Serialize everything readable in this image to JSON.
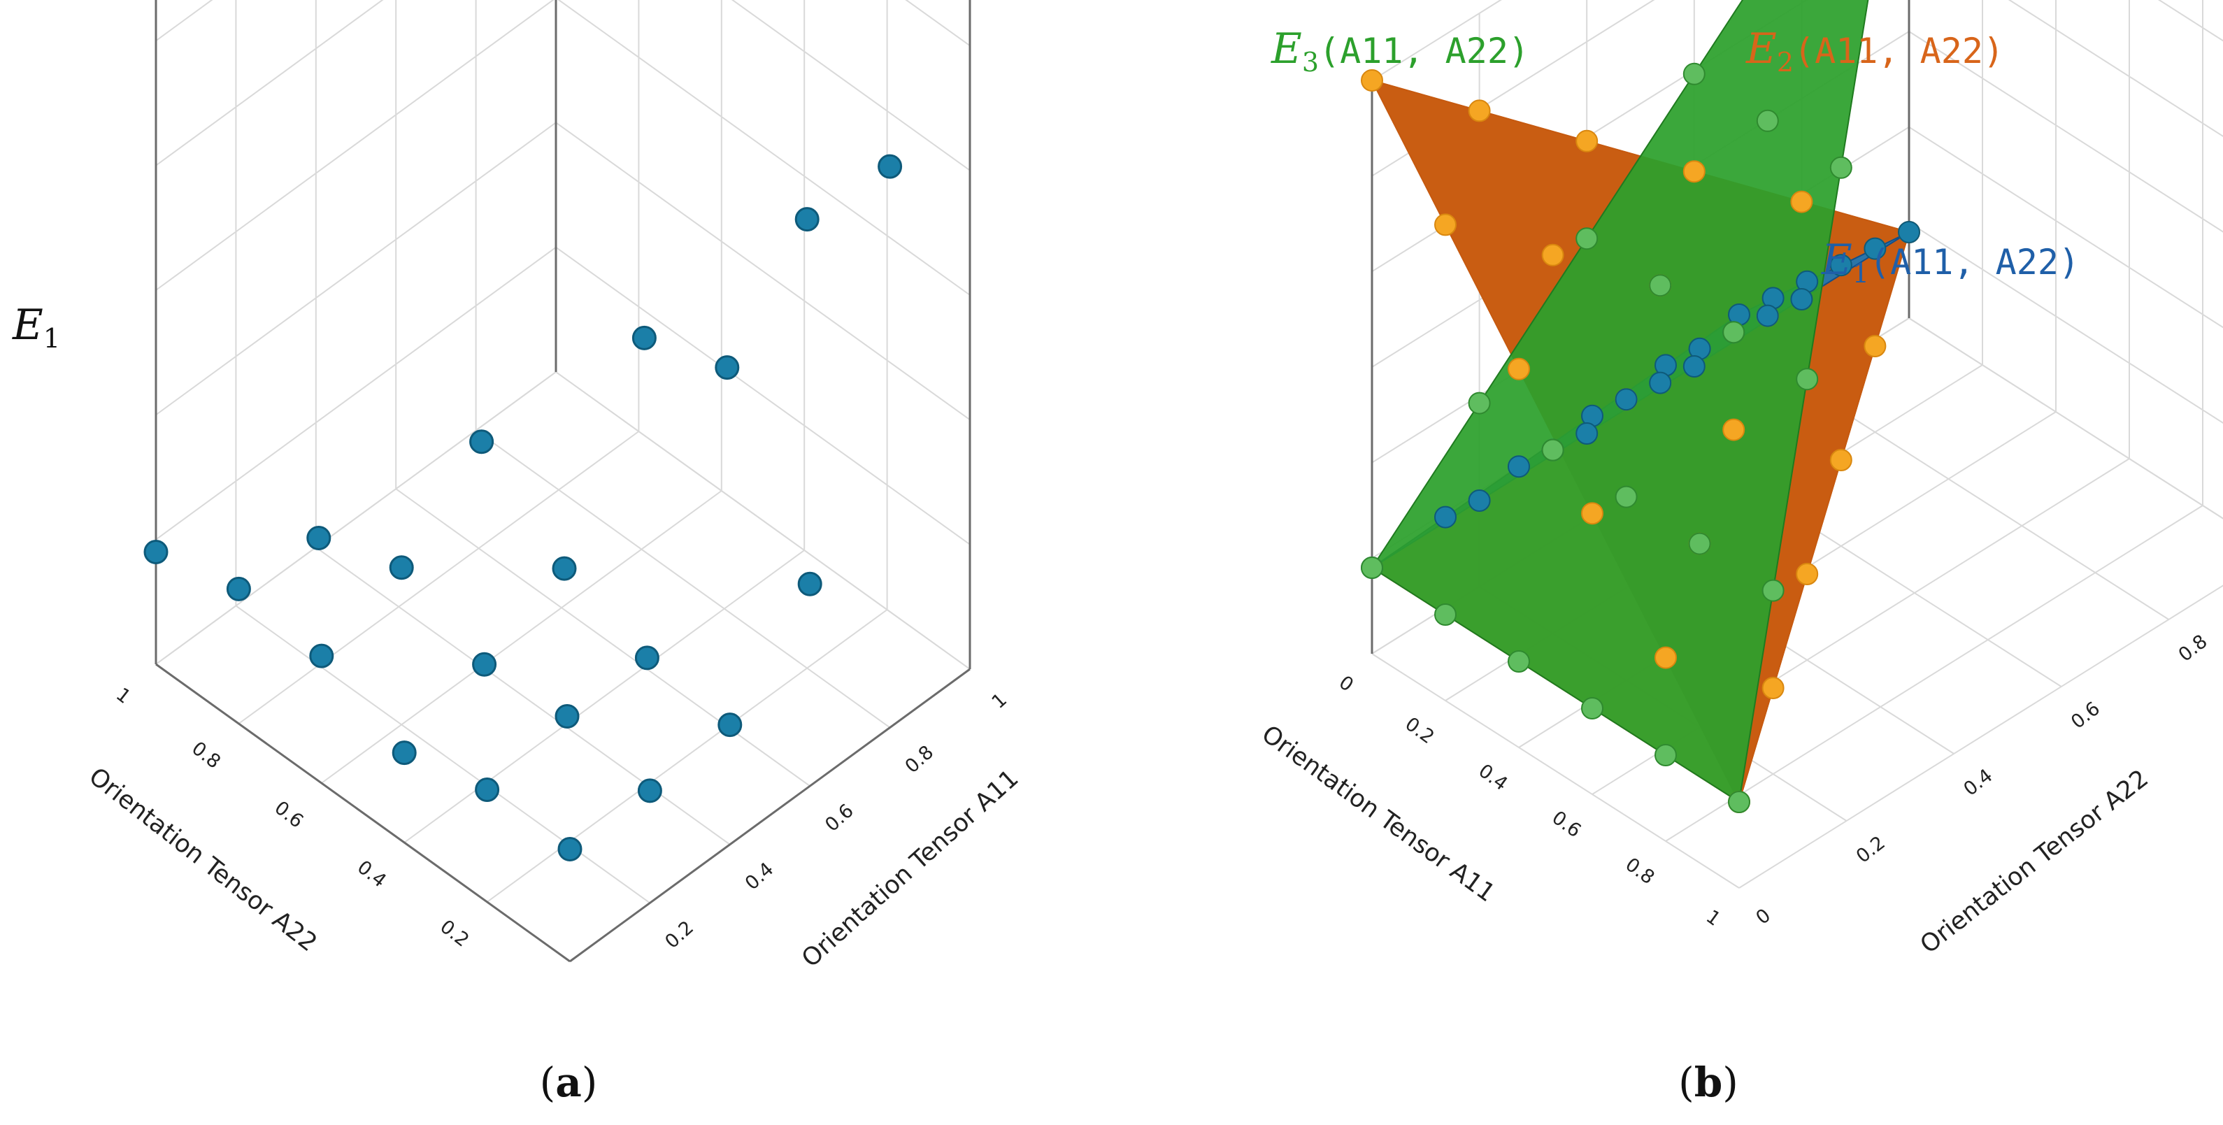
{
  "colors": {
    "e1": "#1f77b4",
    "e1_marker": "#1b7fa8",
    "e2": "#e8761b",
    "e2_dark": "#c65a10",
    "e2_marker": "#f5a623",
    "e3": "#2ca02c",
    "e3_marker": "#5fbd5f",
    "grid": "#d9d9d9",
    "axis": "#6b6b6b"
  },
  "chart_data": [
    {
      "panel": "a",
      "panel_label_open": "(",
      "panel_label_letter": "a",
      "panel_label_close": ")",
      "type": "scatter",
      "zlabel_main": "E",
      "zlabel_sub": "1",
      "xlabel": "Orientation Tensor A22",
      "ylabel": "Orientation Tensor A11",
      "xticks": [
        "0.2",
        "0.4",
        "0.6",
        "0.8",
        "1"
      ],
      "yticks": [
        "0.2",
        "0.4",
        "0.6",
        "0.8",
        "1"
      ],
      "xlim": [
        0,
        1
      ],
      "ylim": [
        0,
        1
      ],
      "series": [
        {
          "name": "E1",
          "points": [
            {
              "a11": 0.0,
              "a22": 0.0,
              "e1": 0.15
            },
            {
              "a11": 0.0,
              "a22": 0.2,
              "e1": 0.15
            },
            {
              "a11": 0.0,
              "a22": 0.4,
              "e1": 0.12
            },
            {
              "a11": 0.0,
              "a22": 0.6,
              "e1": 0.17
            },
            {
              "a11": 0.0,
              "a22": 0.8,
              "e1": 0.18
            },
            {
              "a11": 0.0,
              "a22": 1.0,
              "e1": 0.15
            },
            {
              "a11": 0.2,
              "a22": 0.0,
              "e1": 0.15
            },
            {
              "a11": 0.2,
              "a22": 0.2,
              "e1": 0.17
            },
            {
              "a11": 0.2,
              "a22": 0.4,
              "e1": 0.16
            },
            {
              "a11": 0.2,
              "a22": 0.6,
              "e1": 0.21
            },
            {
              "a11": 0.2,
              "a22": 0.8,
              "e1": 0.17
            },
            {
              "a11": 0.4,
              "a22": 0.0,
              "e1": 0.16
            },
            {
              "a11": 0.4,
              "a22": 0.2,
              "e1": 0.17
            },
            {
              "a11": 0.4,
              "a22": 0.4,
              "e1": 0.21
            },
            {
              "a11": 0.4,
              "a22": 0.6,
              "e1": 0.3
            },
            {
              "a11": 0.6,
              "a22": 0.0,
              "e1": 0.27
            },
            {
              "a11": 0.6,
              "a22": 0.2,
              "e1": 0.48
            },
            {
              "a11": 0.6,
              "a22": 0.4,
              "e1": 0.44
            },
            {
              "a11": 0.8,
              "a22": 0.0,
              "e1": 0.75
            },
            {
              "a11": 0.8,
              "a22": 0.2,
              "e1": 0.6
            },
            {
              "a11": 1.0,
              "a22": 0.0,
              "e1": 1.0
            }
          ]
        }
      ]
    },
    {
      "panel": "b",
      "panel_label_open": "(",
      "panel_label_letter": "b",
      "panel_label_close": ")",
      "type": "surface",
      "xlabel": "Orientation Tensor A11",
      "ylabel": "Orientation Tensor A22",
      "xticks": [
        "0",
        "0.2",
        "0.4",
        "0.6",
        "0.8",
        "1"
      ],
      "yticks": [
        "0",
        "0.2",
        "0.4",
        "0.6",
        "0.8",
        "1"
      ],
      "xlim": [
        0,
        1
      ],
      "ylim": [
        0,
        1
      ],
      "series": [
        {
          "name": "E1(A11, A22)",
          "label_main": "E",
          "label_sub": "1",
          "label_args": "(A11, A22)",
          "corners": [
            {
              "a11": 0,
              "a22": 1,
              "value": 0.15
            },
            {
              "a11": 0,
              "a22": 0,
              "value": 0.15
            },
            {
              "a11": 1,
              "a22": 0,
              "value": 1.0
            }
          ]
        },
        {
          "name": "E2(A11, A22)",
          "label_main": "E",
          "label_sub": "2",
          "label_args": "(A11, A22)",
          "corners": [
            {
              "a11": 0,
              "a22": 1,
              "value": 0.15
            },
            {
              "a11": 0,
              "a22": 0,
              "value": 1.0
            },
            {
              "a11": 1,
              "a22": 0,
              "value": 0.15
            }
          ]
        },
        {
          "name": "E3(A11, A22)",
          "label_main": "E",
          "label_sub": "3",
          "label_args": "(A11, A22)",
          "corners": [
            {
              "a11": 0,
              "a22": 1,
              "value": 1.0
            },
            {
              "a11": 0,
              "a22": 0,
              "value": 0.15
            },
            {
              "a11": 1,
              "a22": 0,
              "value": 0.15
            }
          ]
        }
      ]
    }
  ]
}
